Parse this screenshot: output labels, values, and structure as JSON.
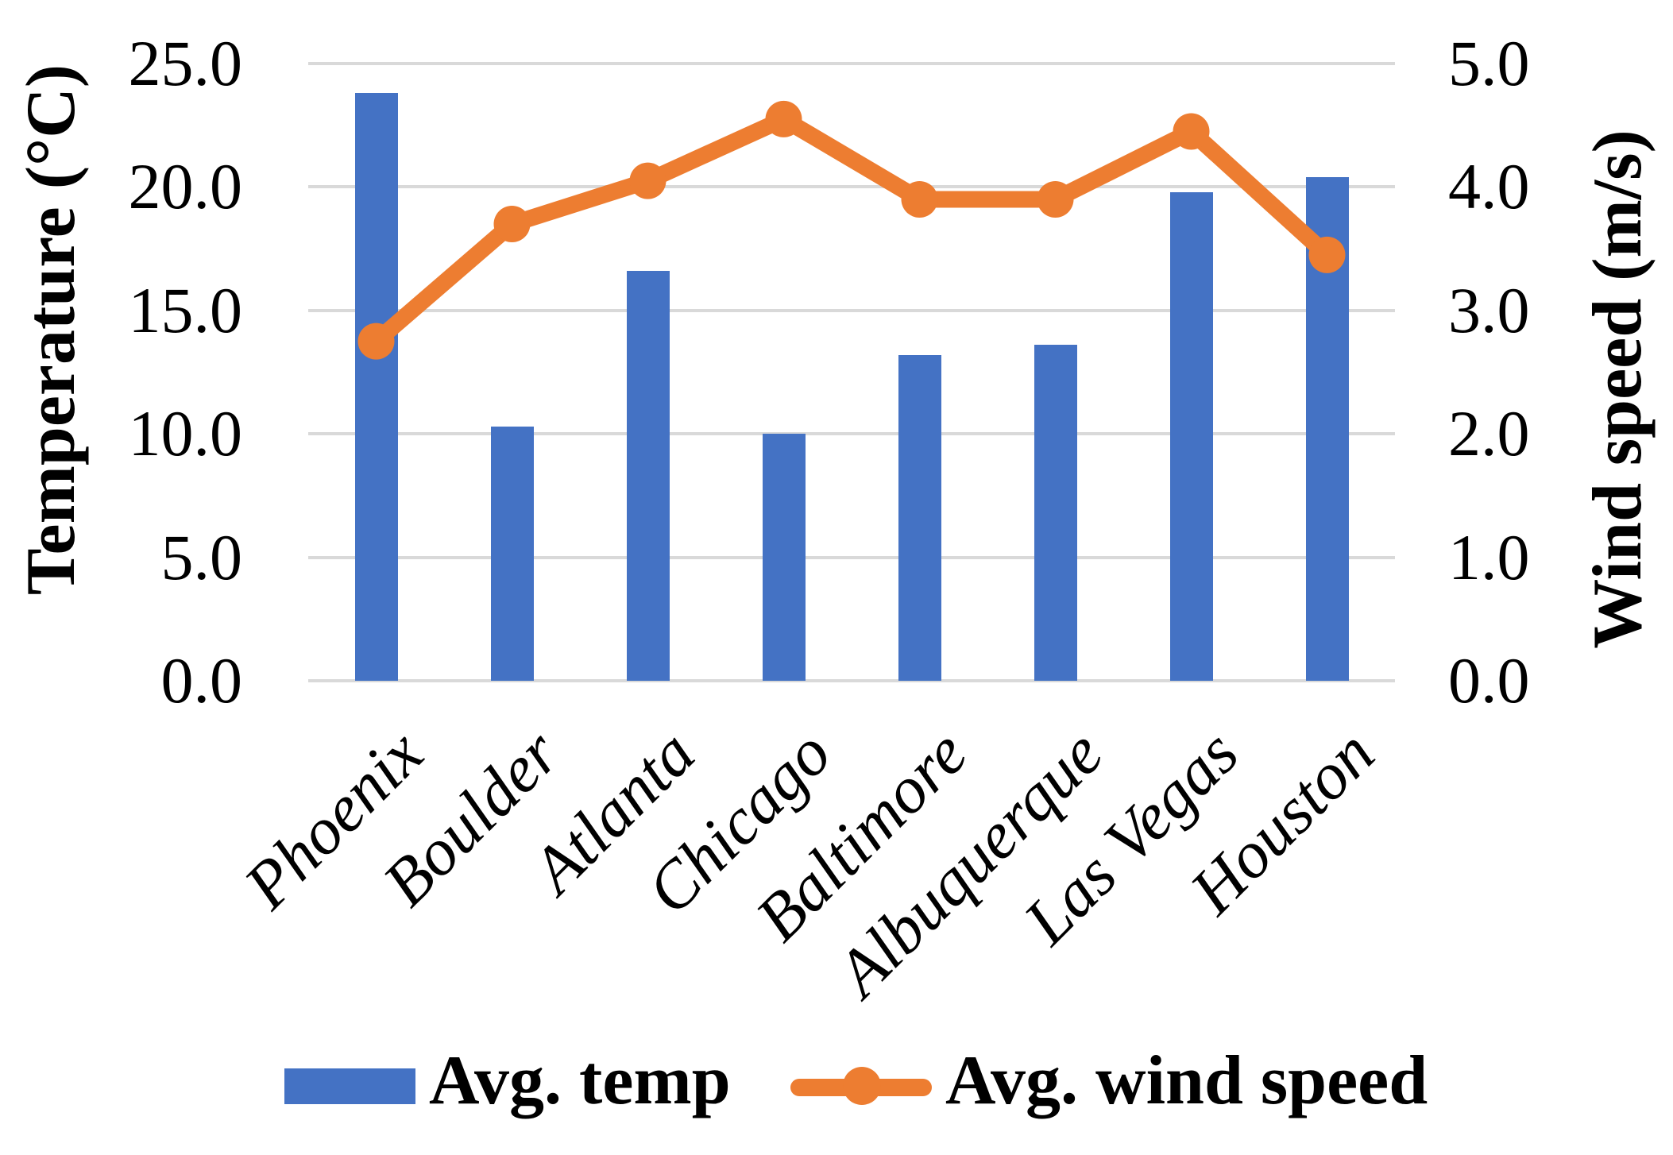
{
  "chart_data": {
    "type": "combo_bar_line",
    "categories": [
      "Phoenix",
      "Boulder",
      "Atlanta",
      "Chicago",
      "Baltimore",
      "Albuquerque",
      "Las Vegas",
      "Houston"
    ],
    "series": [
      {
        "name": "Avg. temp",
        "type": "bar",
        "axis": "left",
        "color": "#4472C4",
        "values": [
          23.8,
          10.3,
          16.6,
          10.0,
          13.2,
          13.6,
          19.8,
          20.4
        ]
      },
      {
        "name": "Avg. wind speed",
        "type": "line",
        "axis": "right",
        "color": "#ED7D31",
        "values": [
          2.75,
          3.7,
          4.05,
          4.55,
          3.9,
          3.9,
          4.45,
          3.45
        ]
      }
    ],
    "left_axis": {
      "title": "Temperature (°C)",
      "min": 0,
      "max": 25,
      "step": 5,
      "tick_labels": [
        "0.0",
        "5.0",
        "10.0",
        "15.0",
        "20.0",
        "25.0"
      ]
    },
    "right_axis": {
      "title": "Wind speed (m/s)",
      "min": 0,
      "max": 5,
      "step": 1,
      "tick_labels": [
        "0.0",
        "1.0",
        "2.0",
        "3.0",
        "4.0",
        "5.0"
      ]
    },
    "grid": "on",
    "gridline_color": "#D9D9D9",
    "background": "#FFFFFF",
    "text_color": "#000000",
    "legend": {
      "position": "bottom",
      "items": [
        "Avg. temp",
        "Avg. wind speed"
      ]
    }
  }
}
